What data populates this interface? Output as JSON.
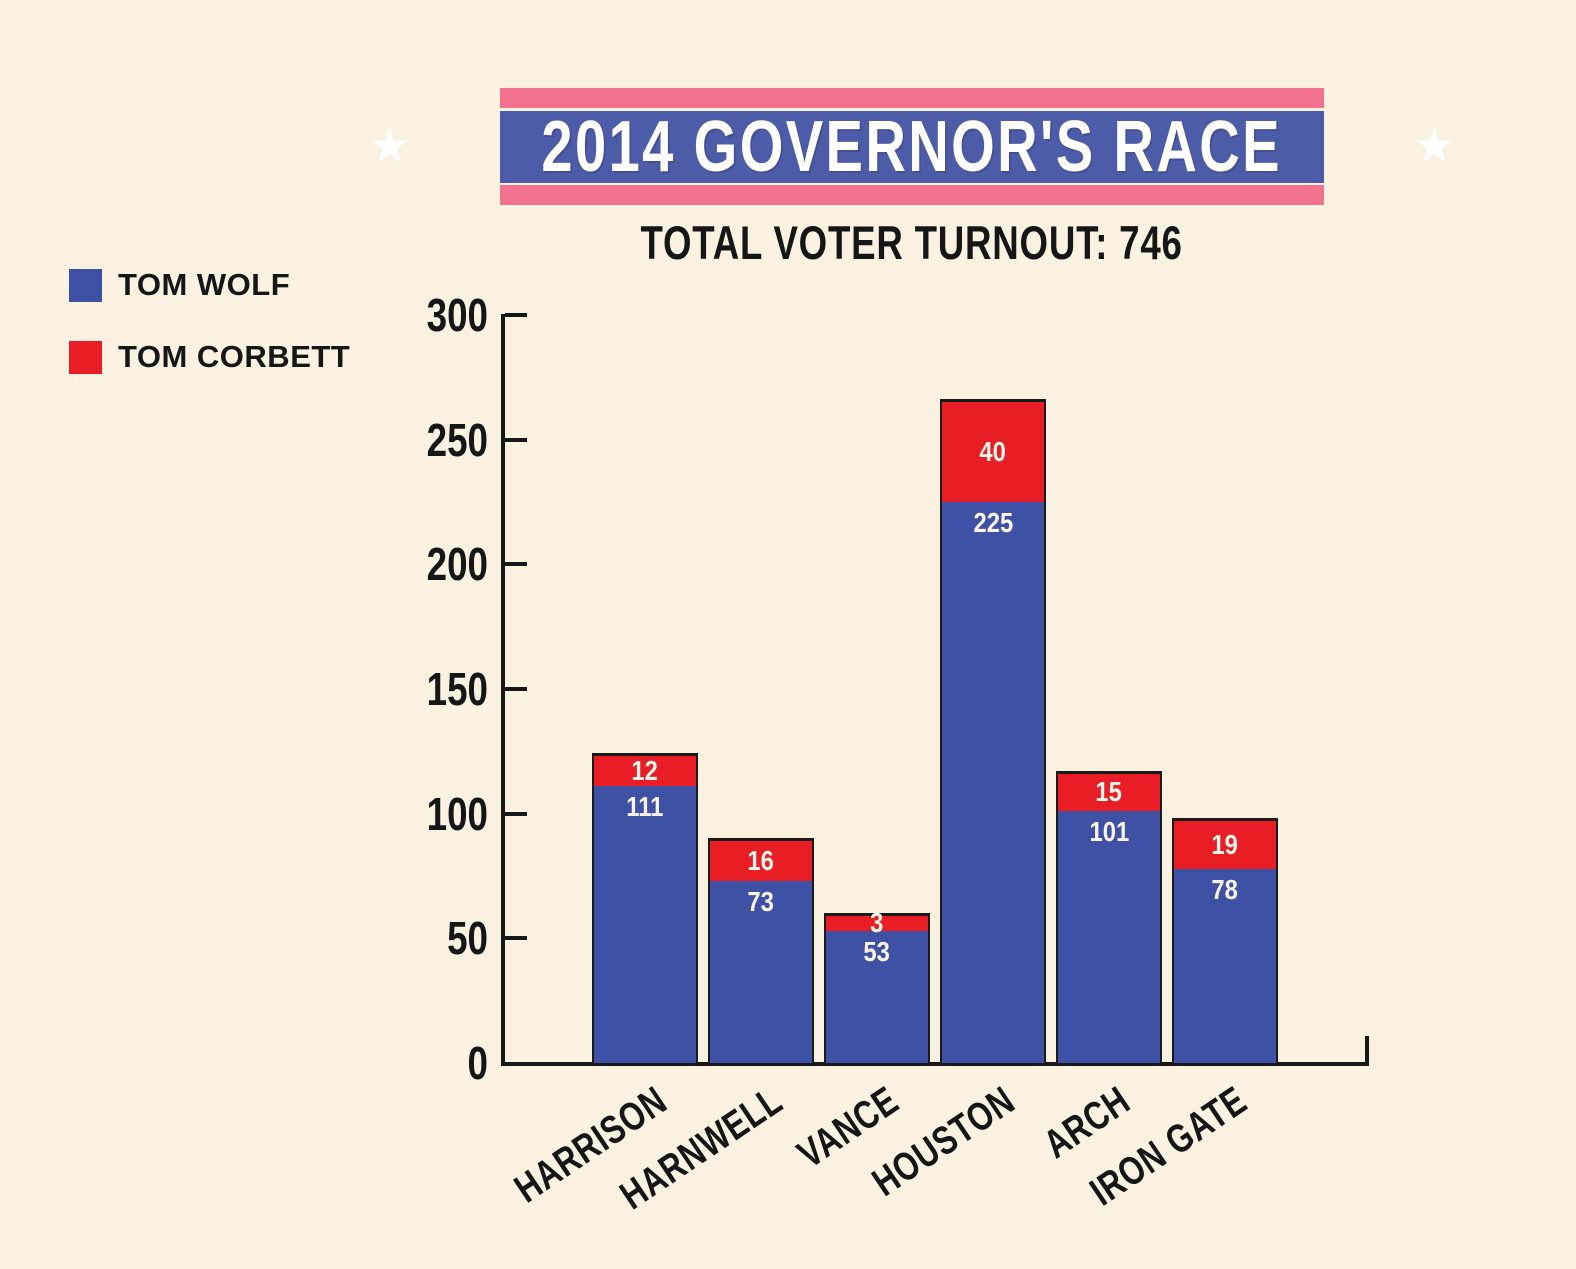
{
  "banner": {
    "title": "2014 GOVERNOR'S RACE",
    "star": "★"
  },
  "subtitle": "TOTAL VOTER TURNOUT: 746",
  "legend": {
    "items": [
      {
        "label": "TOM WOLF",
        "color": "#3F51A4"
      },
      {
        "label": "TOM CORBETT",
        "color": "#E91D26"
      }
    ]
  },
  "chart_data": {
    "type": "bar",
    "stacked": true,
    "title": "2014 GOVERNOR'S RACE",
    "subtitle": "TOTAL VOTER TURNOUT: 746",
    "categories": [
      "HARRISON",
      "HARNWELL",
      "VANCE",
      "HOUSTON",
      "ARCH",
      "IRON GATE"
    ],
    "series": [
      {
        "name": "TOM WOLF",
        "color": "#3F51A4",
        "values": [
          111,
          73,
          53,
          225,
          101,
          78
        ]
      },
      {
        "name": "TOM CORBETT",
        "color": "#E91D26",
        "values": [
          12,
          16,
          3,
          40,
          15,
          19
        ]
      }
    ],
    "yticks": [
      0,
      50,
      100,
      150,
      200,
      250,
      300
    ],
    "ylim": [
      0,
      300
    ],
    "xlabel": "",
    "ylabel": "",
    "grid": false,
    "legend_position": "top-left",
    "value_labels": "inside-segments"
  },
  "colors": {
    "background": "#FAF1E1",
    "bar_blue": "#3F51A4",
    "bar_red": "#E91D26",
    "banner_blue": "#4D5CA9",
    "banner_pink": "#F2718C",
    "ink": "#161616",
    "value_label": "#FAF4E8"
  }
}
